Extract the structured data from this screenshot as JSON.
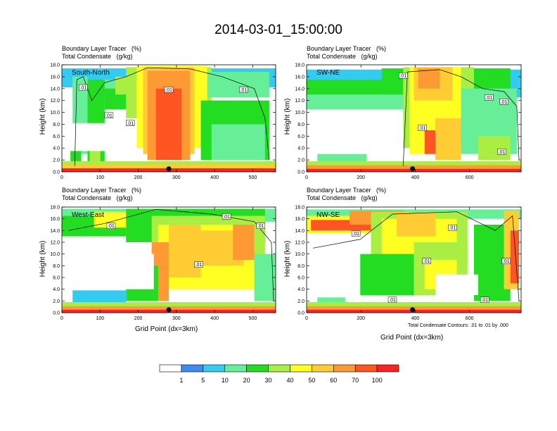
{
  "title": "2014-03-01_15:00:00",
  "colors": {
    "levels": [
      "#ffffff",
      "#3b8cf0",
      "#33ccf0",
      "#66ee99",
      "#22dd22",
      "#aaee44",
      "#ffff22",
      "#ffcc33",
      "#ff9933",
      "#ff5522",
      "#ff2222"
    ],
    "contour": "#000000"
  },
  "chart_data": [
    {
      "type": "heatmap",
      "panel": "top-left",
      "label_line1": "Boundary Layer Tracer   (%)",
      "label_line2": "Total Condensate   (g/kg)",
      "direction": "South-North",
      "ylabel": "Height (km)",
      "xlabel": "",
      "xlim": [
        0,
        560
      ],
      "ylim": [
        0,
        18
      ],
      "xticks": [
        "0",
        "100",
        "200",
        "300",
        "400",
        "500"
      ],
      "xtick_values": [
        0,
        100,
        200,
        300,
        400,
        500
      ],
      "yticks": [
        "0.0",
        "2.0",
        "4.0",
        "6.0",
        "8.0",
        "10.0",
        "12.0",
        "14.0",
        "16.0",
        "18.0"
      ],
      "contour_labels": [
        ".01",
        ".01",
        ".01",
        ".01",
        ".01"
      ],
      "marker_x": 280
    },
    {
      "type": "heatmap",
      "panel": "top-right",
      "label_line1": "Boundary Layer Tracer   (%)",
      "label_line2": "Total Condensate   (g/kg)",
      "direction": "SW-NE",
      "ylabel": "Height (km)",
      "xlabel": "",
      "xlim": [
        0,
        790
      ],
      "ylim": [
        0,
        18
      ],
      "xticks": [
        "0",
        "200",
        "400",
        "600"
      ],
      "xtick_values": [
        0,
        200,
        400,
        600
      ],
      "yticks": [
        "0.0",
        "2.0",
        "4.0",
        "6.0",
        "8.0",
        "10.0",
        "12.0",
        "14.0",
        "16.0",
        "18.0"
      ],
      "contour_labels": [
        ".01",
        ".01",
        ".01",
        ".01",
        ".01"
      ],
      "marker_x": 390
    },
    {
      "type": "heatmap",
      "panel": "bottom-left",
      "label_line1": "Boundary Layer Tracer   (%)",
      "label_line2": "Total Condensate   (g/kg)",
      "direction": "West-East",
      "ylabel": "Height (km)",
      "xlabel": "Grid Point (dx=3km)",
      "xlim": [
        0,
        560
      ],
      "ylim": [
        0,
        18
      ],
      "xticks": [
        "0",
        "100",
        "200",
        "300",
        "400",
        "500"
      ],
      "xtick_values": [
        0,
        100,
        200,
        300,
        400,
        500
      ],
      "yticks": [
        "0.0",
        "2.0",
        "4.0",
        "6.0",
        "8.0",
        "10.0",
        "12.0",
        "14.0",
        "16.0",
        "18.0"
      ],
      "contour_labels": [
        ".01",
        ".01",
        ".01",
        ".01"
      ],
      "marker_x": 280
    },
    {
      "type": "heatmap",
      "panel": "bottom-right",
      "label_line1": "Boundary Layer Tracer   (%)",
      "label_line2": "Total Condensate   (g/kg)",
      "direction": "NW-SE",
      "ylabel": "Height (km)",
      "xlabel": "Grid Point (dx=3km)",
      "xlim": [
        0,
        790
      ],
      "ylim": [
        0,
        18
      ],
      "xticks": [
        "0",
        "200",
        "400",
        "600"
      ],
      "xtick_values": [
        0,
        200,
        400,
        600
      ],
      "yticks": [
        "0.0",
        "2.0",
        "4.0",
        "6.0",
        "8.0",
        "10.0",
        "12.0",
        "14.0",
        "16.0",
        "18.0"
      ],
      "contour_labels": [
        ".01",
        ".01",
        ".01",
        ".01",
        ".01",
        ".01"
      ],
      "marker_x": 390
    }
  ],
  "contour_note": "Total Condensate Contours: .01 to .01 by .000",
  "colorbar": {
    "labels": [
      "1",
      "5",
      "10",
      "20",
      "30",
      "40",
      "50",
      "60",
      "70",
      "100"
    ]
  }
}
